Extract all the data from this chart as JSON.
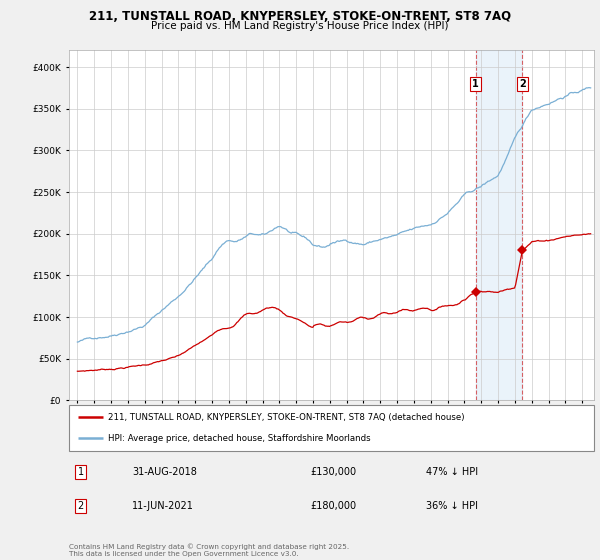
{
  "title1": "211, TUNSTALL ROAD, KNYPERSLEY, STOKE-ON-TRENT, ST8 7AQ",
  "title2": "Price paid vs. HM Land Registry's House Price Index (HPI)",
  "legend_line1": "211, TUNSTALL ROAD, KNYPERSLEY, STOKE-ON-TRENT, ST8 7AQ (detached house)",
  "legend_line2": "HPI: Average price, detached house, Staffordshire Moorlands",
  "annotation1_label": "1",
  "annotation1_date": "31-AUG-2018",
  "annotation1_price": "£130,000",
  "annotation1_pct": "47% ↓ HPI",
  "annotation2_label": "2",
  "annotation2_date": "11-JUN-2021",
  "annotation2_price": "£180,000",
  "annotation2_pct": "36% ↓ HPI",
  "sale1_x": 2018.667,
  "sale1_y": 130000,
  "sale2_x": 2021.44,
  "sale2_y": 180000,
  "price_color": "#cc0000",
  "hpi_color": "#7aafd4",
  "vline_color": "#cc0000",
  "vline_alpha": 0.6,
  "shade_color": "#d6e8f7",
  "shade_alpha": 0.5,
  "background_color": "#f0f0f0",
  "footer": "Contains HM Land Registry data © Crown copyright and database right 2025.\nThis data is licensed under the Open Government Licence v3.0.",
  "ylim": [
    0,
    420000
  ],
  "yticks": [
    0,
    50000,
    100000,
    150000,
    200000,
    250000,
    300000,
    350000,
    400000
  ],
  "xlim_start": 1994.5,
  "xlim_end": 2025.7
}
